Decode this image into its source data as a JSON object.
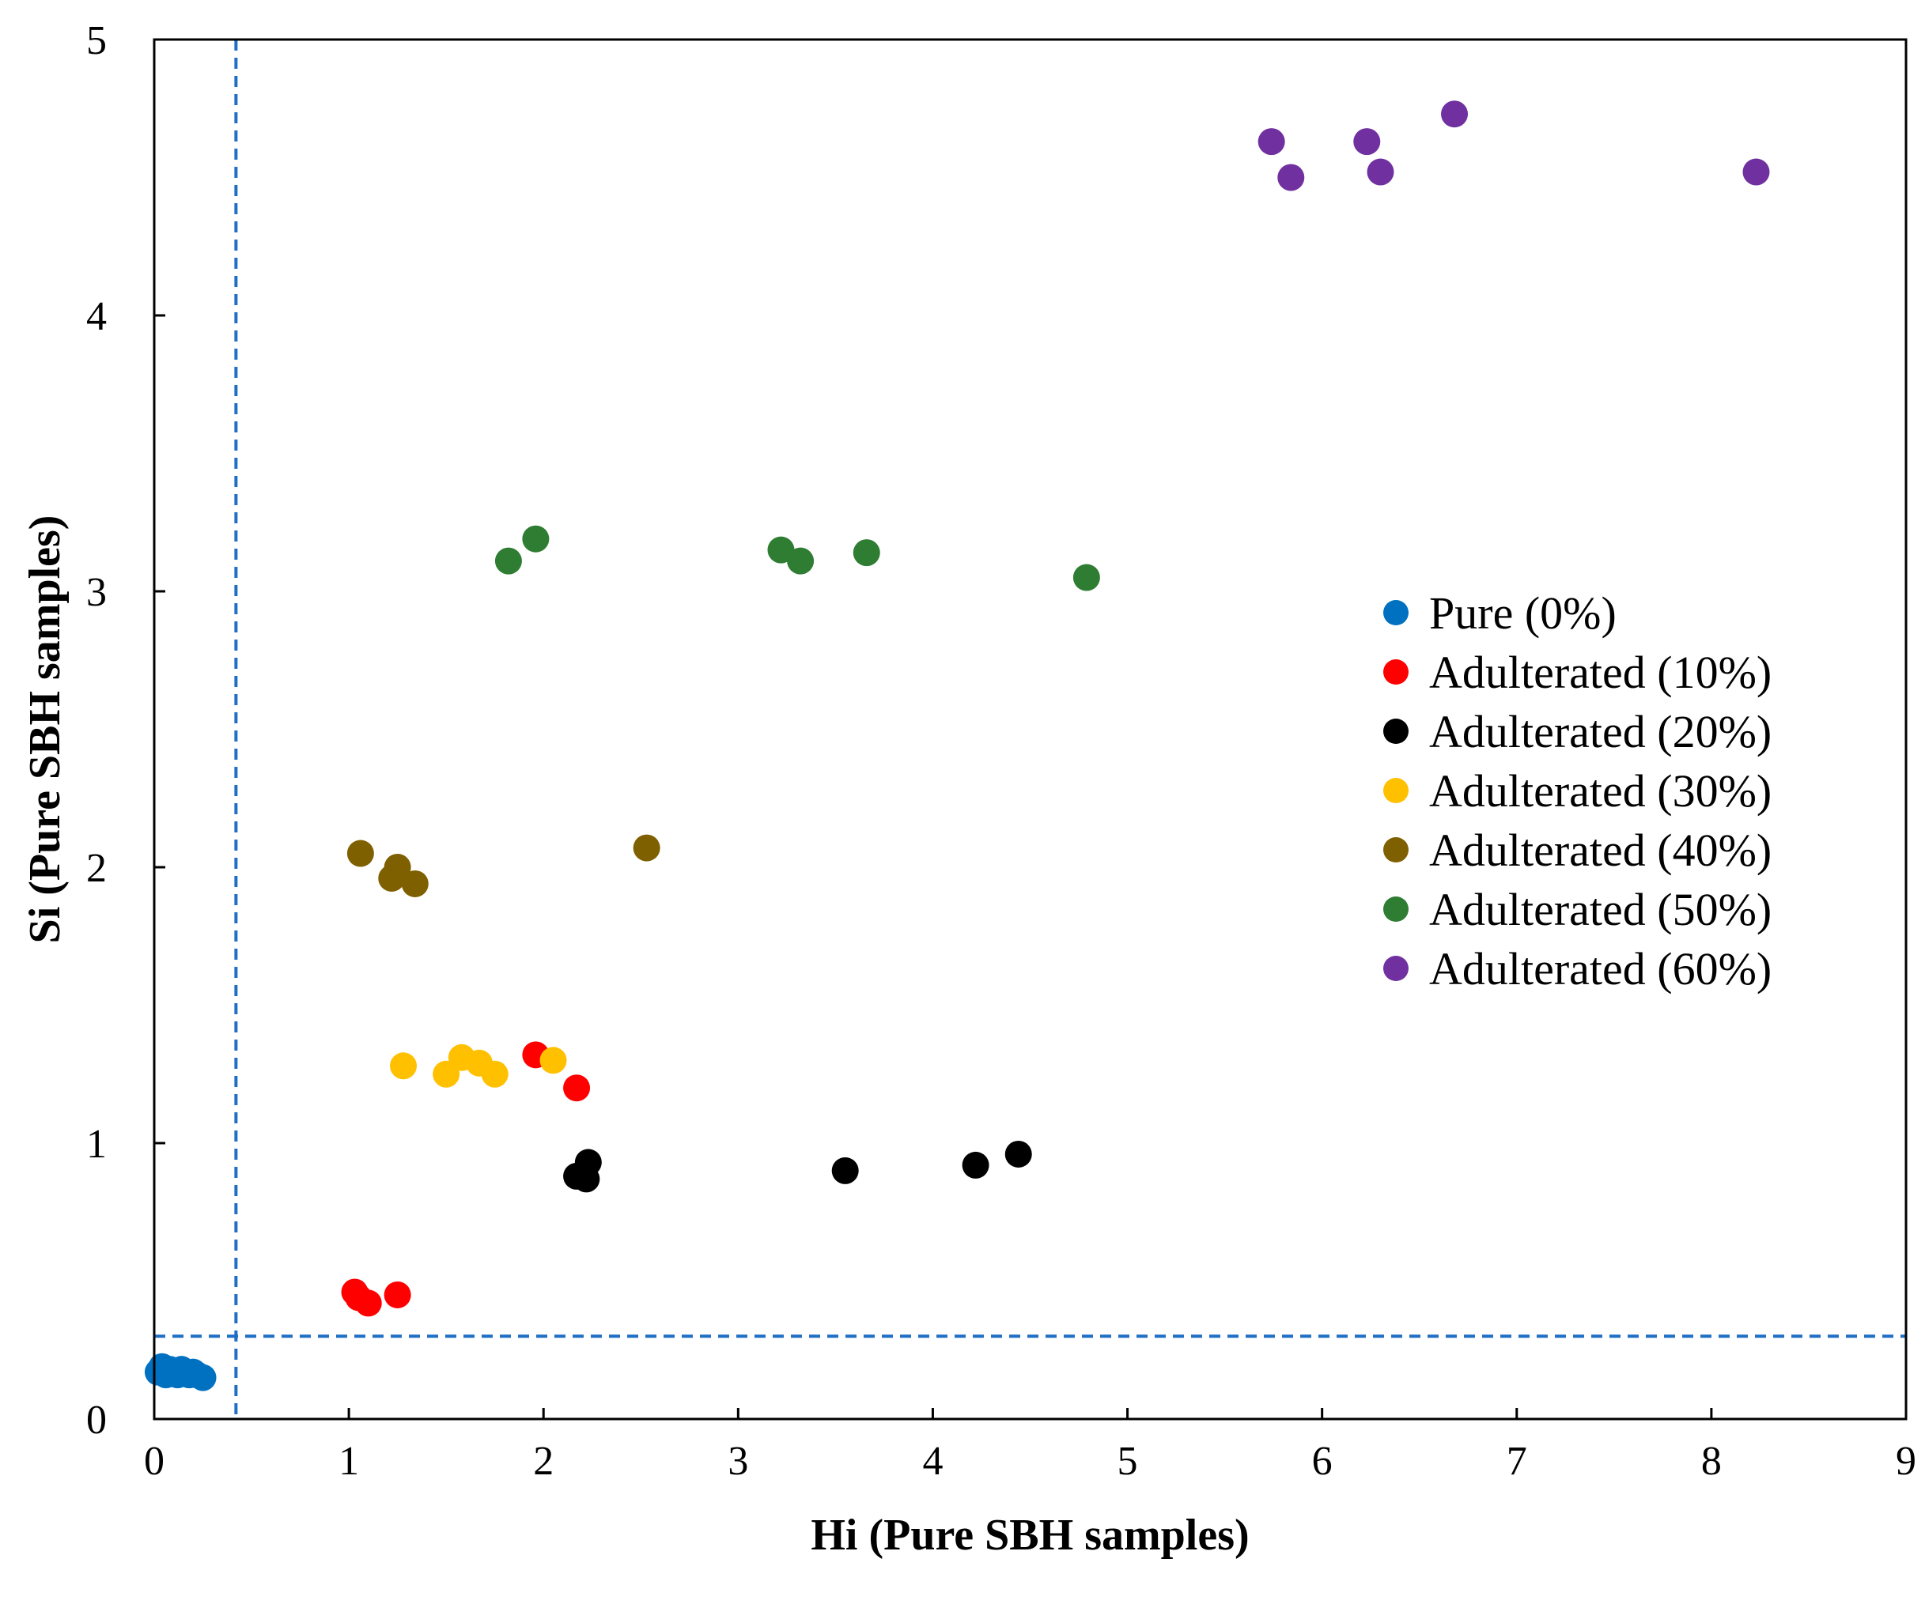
{
  "chart_data": {
    "type": "scatter",
    "title": "",
    "xlabel": "Hi (Pure SBH samples)",
    "ylabel": "Si (Pure SBH samples)",
    "xlim": [
      0,
      9
    ],
    "ylim": [
      0,
      5
    ],
    "xticks": [
      "0",
      "1",
      "2",
      "3",
      "4",
      "5",
      "6",
      "7",
      "8",
      "9"
    ],
    "yticks": [
      "0",
      "1",
      "2",
      "3",
      "4",
      "5"
    ],
    "grid": false,
    "legend_position": "right",
    "threshold_lines": {
      "x": 0.42,
      "y": 0.3,
      "color": "#1F6FC5",
      "style": "dashed"
    },
    "series": [
      {
        "name": "Pure (0%)",
        "color": "#0070C0",
        "points": [
          [
            0.02,
            0.17
          ],
          [
            0.04,
            0.19
          ],
          [
            0.06,
            0.16
          ],
          [
            0.08,
            0.18
          ],
          [
            0.1,
            0.17
          ],
          [
            0.12,
            0.16
          ],
          [
            0.14,
            0.18
          ],
          [
            0.16,
            0.17
          ],
          [
            0.18,
            0.16
          ],
          [
            0.2,
            0.17
          ],
          [
            0.22,
            0.16
          ],
          [
            0.25,
            0.15
          ]
        ]
      },
      {
        "name": "Adulterated (10%)",
        "color": "#FF0000",
        "points": [
          [
            1.03,
            0.46
          ],
          [
            1.05,
            0.44
          ],
          [
            1.1,
            0.42
          ],
          [
            1.25,
            0.45
          ],
          [
            1.96,
            1.32
          ],
          [
            2.17,
            1.2
          ]
        ]
      },
      {
        "name": "Adulterated (20%)",
        "color": "#000000",
        "points": [
          [
            2.17,
            0.88
          ],
          [
            2.22,
            0.87
          ],
          [
            2.23,
            0.93
          ],
          [
            3.55,
            0.9
          ],
          [
            4.22,
            0.92
          ],
          [
            4.44,
            0.96
          ]
        ]
      },
      {
        "name": "Adulterated (30%)",
        "color": "#FFC000",
        "points": [
          [
            1.28,
            1.28
          ],
          [
            1.5,
            1.25
          ],
          [
            1.58,
            1.31
          ],
          [
            1.67,
            1.29
          ],
          [
            1.75,
            1.25
          ],
          [
            2.05,
            1.3
          ]
        ]
      },
      {
        "name": "Adulterated (40%)",
        "color": "#7F6000",
        "points": [
          [
            1.06,
            2.05
          ],
          [
            1.22,
            1.96
          ],
          [
            1.25,
            2.0
          ],
          [
            1.34,
            1.94
          ],
          [
            2.53,
            2.07
          ]
        ]
      },
      {
        "name": "Adulterated (50%)",
        "color": "#2E7D32",
        "points": [
          [
            1.82,
            3.11
          ],
          [
            1.96,
            3.19
          ],
          [
            3.22,
            3.15
          ],
          [
            3.32,
            3.11
          ],
          [
            3.66,
            3.14
          ],
          [
            4.79,
            3.05
          ]
        ]
      },
      {
        "name": "Adulterated (60%)",
        "color": "#7030A0",
        "points": [
          [
            5.74,
            4.63
          ],
          [
            5.84,
            4.5
          ],
          [
            6.23,
            4.63
          ],
          [
            6.3,
            4.52
          ],
          [
            6.68,
            4.73
          ],
          [
            8.23,
            4.52
          ]
        ]
      }
    ]
  }
}
